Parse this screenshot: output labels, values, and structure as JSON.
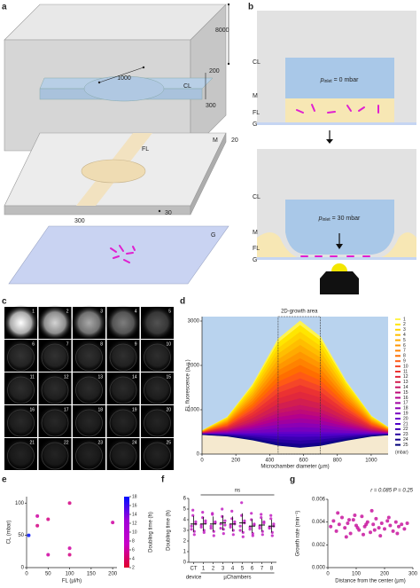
{
  "panels": {
    "labels": [
      "a",
      "b",
      "c",
      "d",
      "e",
      "f",
      "g"
    ],
    "a": {
      "box_height": "8000",
      "channel_length": "1000",
      "cl_height": "200",
      "cl_label": "CL",
      "cl_width": "300",
      "fl_label": "FL",
      "m_label": "M",
      "m_thickness": "20",
      "fl_width": "300",
      "fl_height": "30",
      "g_label": "G"
    },
    "b": {
      "top": {
        "layers": [
          "CL",
          "M",
          "FL",
          "G"
        ],
        "pressure": {
          "symbol": "p",
          "subscript": "inlet",
          "text": " = 0 mbar"
        }
      },
      "bottom": {
        "layers": [
          "CL",
          "M",
          "FL",
          "G"
        ],
        "pressure": {
          "symbol": "p",
          "subscript": "inlet",
          "text": " = 30 mbar"
        }
      }
    },
    "c": {
      "frames": [
        "1",
        "2",
        "3",
        "4",
        "5",
        "6",
        "7",
        "8",
        "9",
        "10",
        "11",
        "12",
        "13",
        "14",
        "15",
        "16",
        "17",
        "18",
        "19",
        "20",
        "21",
        "22",
        "23",
        "24",
        "25"
      ]
    }
  },
  "chart_data": [
    {
      "type": "line",
      "x": [
        0,
        150,
        300,
        450,
        580,
        700,
        850,
        1000,
        1100
      ],
      "series": [
        {
          "name": "1",
          "color": "#fff44f",
          "values": [
            527,
            833,
            1572,
            2592,
            3000,
            2643,
            1649,
            858,
            603
          ]
        },
        {
          "name": "2",
          "color": "#ffe600",
          "values": [
            524,
            818,
            1528,
            2508,
            2900,
            2557,
            1602,
            842,
            597
          ]
        },
        {
          "name": "3",
          "color": "#ffd200",
          "values": [
            519,
            795,
            1462,
            2382,
            2750,
            2428,
            1531,
            818,
            588
          ]
        },
        {
          "name": "4",
          "color": "#ffbe00",
          "values": [
            515,
            773,
            1396,
            2256,
            2600,
            2299,
            1461,
            794,
            579
          ]
        },
        {
          "name": "5",
          "color": "#ffaa00",
          "values": [
            510,
            750,
            1330,
            2130,
            2450,
            2170,
            1390,
            770,
            570
          ]
        },
        {
          "name": "6",
          "color": "#ff9600",
          "values": [
            506,
            728,
            1264,
            2004,
            2300,
            2041,
            1320,
            746,
            561
          ]
        },
        {
          "name": "7",
          "color": "#ff8200",
          "values": [
            501,
            705,
            1198,
            1878,
            2150,
            1912,
            1249,
            722,
            552
          ]
        },
        {
          "name": "8",
          "color": "#ff6e00",
          "values": [
            497,
            683,
            1132,
            1752,
            2000,
            1783,
            1179,
            698,
            543
          ]
        },
        {
          "name": "9",
          "color": "#ff5a14",
          "values": [
            492,
            660,
            1066,
            1626,
            1850,
            1654,
            1108,
            674,
            534
          ]
        },
        {
          "name": "10",
          "color": "#f54628",
          "values": [
            488,
            638,
            1000,
            1500,
            1700,
            1525,
            1038,
            650,
            525
          ]
        },
        {
          "name": "11",
          "color": "#eb3232",
          "values": [
            483,
            615,
            934,
            1374,
            1550,
            1396,
            967,
            626,
            516
          ]
        },
        {
          "name": "12",
          "color": "#e1283c",
          "values": [
            479,
            593,
            868,
            1248,
            1400,
            1267,
            897,
            602,
            507
          ]
        },
        {
          "name": "13",
          "color": "#d21e50",
          "values": [
            474,
            570,
            802,
            1122,
            1250,
            1138,
            826,
            578,
            498
          ]
        },
        {
          "name": "14",
          "color": "#c81464",
          "values": [
            470,
            548,
            736,
            996,
            1100,
            1009,
            756,
            554,
            489
          ]
        },
        {
          "name": "15",
          "color": "#be0a78",
          "values": [
            467,
            533,
            692,
            912,
            1000,
            923,
            709,
            538,
            483
          ]
        },
        {
          "name": "16",
          "color": "#b4008c",
          "values": [
            464,
            518,
            648,
            828,
            900,
            837,
            662,
            522,
            477
          ]
        },
        {
          "name": "17",
          "color": "#a000a0",
          "values": [
            461,
            503,
            604,
            744,
            800,
            751,
            615,
            506,
            471
          ]
        },
        {
          "name": "18",
          "color": "#8c00b4",
          "values": [
            458,
            488,
            560,
            660,
            700,
            665,
            568,
            490,
            465
          ]
        },
        {
          "name": "19",
          "color": "#7800be",
          "values": [
            455,
            473,
            516,
            576,
            600,
            579,
            521,
            474,
            459
          ]
        },
        {
          "name": "20",
          "color": "#6400c8",
          "values": [
            452,
            458,
            472,
            492,
            500,
            493,
            474,
            458,
            453
          ]
        },
        {
          "name": "21",
          "color": "#5000c8",
          "values": [
            450,
            450,
            450,
            450,
            450,
            450,
            450,
            450,
            450
          ]
        },
        {
          "name": "22",
          "color": "#3c00b4",
          "values": [
            448,
            439,
            419,
            391,
            380,
            390,
            417,
            439,
            446
          ]
        },
        {
          "name": "23",
          "color": "#2800a0",
          "values": [
            445,
            427,
            384,
            324,
            300,
            321,
            379,
            426,
            441
          ]
        },
        {
          "name": "24",
          "color": "#14008c",
          "values": [
            443,
            415,
            349,
            257,
            220,
            252,
            342,
            413,
            436
          ]
        },
        {
          "name": "25",
          "color": "#000078",
          "values": [
            441,
            405,
            318,
            198,
            150,
            192,
            309,
            402,
            432
          ]
        }
      ],
      "xlim": [
        0,
        1100
      ],
      "ylim": [
        0,
        3100
      ],
      "xticks": [
        0,
        200,
        400,
        600,
        800,
        1000
      ],
      "yticks": [
        0,
        1000,
        2000,
        3000
      ],
      "xlabel": "Microchamber diameter (µm)",
      "ylabel": "FL fluorescence (a.u.)",
      "annotation": "2D-growth area",
      "highlight_x": [
        450,
        700
      ],
      "legend_title": "(mbar)",
      "background": "#b9d3ee",
      "under_color": "#f5e9cf"
    },
    {
      "type": "scatter",
      "x": [
        5,
        25,
        25,
        50,
        50,
        100,
        100,
        100,
        200
      ],
      "values": [
        50,
        65,
        80,
        75,
        20,
        100,
        30,
        20,
        70
      ],
      "doubling_time": [
        18,
        5,
        6,
        5,
        6,
        5,
        6,
        5,
        6
      ],
      "colormap": [
        "#e0002a",
        "#c800c8",
        "#a000d8",
        "#0010ff"
      ],
      "clim": [
        2,
        18
      ],
      "colorbar_ticks": [
        2,
        4,
        6,
        8,
        10,
        12,
        14,
        16,
        18
      ],
      "colorbar_label": "Doubling time (h)",
      "xlim": [
        0,
        210
      ],
      "ylim": [
        0,
        110
      ],
      "xticks": [
        0,
        50,
        100,
        150,
        200
      ],
      "yticks": [
        0,
        50,
        100
      ],
      "xlabel": "FL (µl/h)",
      "ylabel": "CL (mbar)"
    },
    {
      "type": "strip",
      "categories": [
        "CT",
        "1",
        "2",
        "3",
        "4",
        "5",
        "6",
        "7",
        "8"
      ],
      "groups": [
        {
          "label": "device",
          "size": 1
        },
        {
          "label": "µChambers",
          "size": 8
        }
      ],
      "values": [
        [
          3.1,
          4.4,
          2.6,
          3.8,
          3.4,
          4.9,
          2.9,
          3.6
        ],
        [
          3.3,
          4.2,
          2.8,
          3.9,
          3.5,
          4.7,
          3.0,
          3.7
        ],
        [
          3.4,
          4.5,
          2.5,
          3.7,
          3.2,
          4.6,
          2.9,
          3.8
        ],
        [
          3.2,
          4.3,
          2.7,
          3.9,
          3.6,
          5.0,
          3.1,
          3.5
        ],
        [
          3.5,
          4.1,
          2.6,
          3.8,
          3.3,
          4.8,
          3.0,
          3.6
        ],
        [
          3.0,
          4.4,
          2.4,
          3.7,
          3.4,
          5.6,
          2.8,
          3.9
        ],
        [
          3.3,
          4.0,
          2.5,
          3.6,
          3.1,
          4.6,
          2.7,
          3.5
        ],
        [
          3.4,
          4.2,
          2.6,
          3.8,
          3.2,
          4.5,
          2.9,
          3.7
        ],
        [
          3.2,
          4.1,
          2.5,
          3.6,
          3.3,
          4.4,
          2.8,
          3.4
        ]
      ],
      "means": [
        3.6,
        3.6,
        3.6,
        3.7,
        3.6,
        3.7,
        3.4,
        3.5,
        3.4
      ],
      "sds": [
        0.75,
        0.65,
        0.7,
        0.7,
        0.7,
        0.9,
        0.65,
        0.6,
        0.6
      ],
      "color": "#c21fc2",
      "ylim": [
        0,
        6
      ],
      "yticks": [
        0,
        1,
        2,
        3,
        4,
        5,
        6
      ],
      "ylabel": "Doubling time (h)",
      "annotation": "ns"
    },
    {
      "type": "scatter",
      "x": [
        10,
        20,
        30,
        40,
        50,
        60,
        70,
        80,
        90,
        100,
        110,
        120,
        130,
        140,
        150,
        160,
        170,
        180,
        190,
        200,
        210,
        220,
        230,
        240,
        250,
        260,
        270,
        280,
        35,
        65,
        95,
        125,
        155,
        185,
        215,
        245,
        75,
        105,
        135,
        165
      ],
      "values": [
        0.0036,
        0.0041,
        0.0032,
        0.0038,
        0.0044,
        0.0035,
        0.0039,
        0.003,
        0.0042,
        0.0037,
        0.0033,
        0.0045,
        0.0036,
        0.004,
        0.0031,
        0.0038,
        0.0043,
        0.0035,
        0.0039,
        0.0034,
        0.0041,
        0.0037,
        0.0032,
        0.004,
        0.0036,
        0.0038,
        0.0034,
        0.0039,
        0.0048,
        0.0027,
        0.0046,
        0.0029,
        0.005,
        0.0028,
        0.0044,
        0.003,
        0.0042,
        0.0035,
        0.0038,
        0.0033
      ],
      "color": "#c8159e",
      "xlim": [
        0,
        300
      ],
      "ylim": [
        0,
        0.006
      ],
      "xticks": [
        0,
        100,
        200,
        300
      ],
      "yticks": [
        {
          "value": 0,
          "label": "0.000"
        },
        {
          "value": 0.002,
          "label": "0.002"
        },
        {
          "value": 0.004,
          "label": "0.004"
        },
        {
          "value": 0.006,
          "label": "0.006"
        }
      ],
      "xlabel": "Distance from the center (µm)",
      "ylabel": "Growth rate (min⁻¹)",
      "annotation": "r = 0.085  P = 0.25"
    }
  ]
}
